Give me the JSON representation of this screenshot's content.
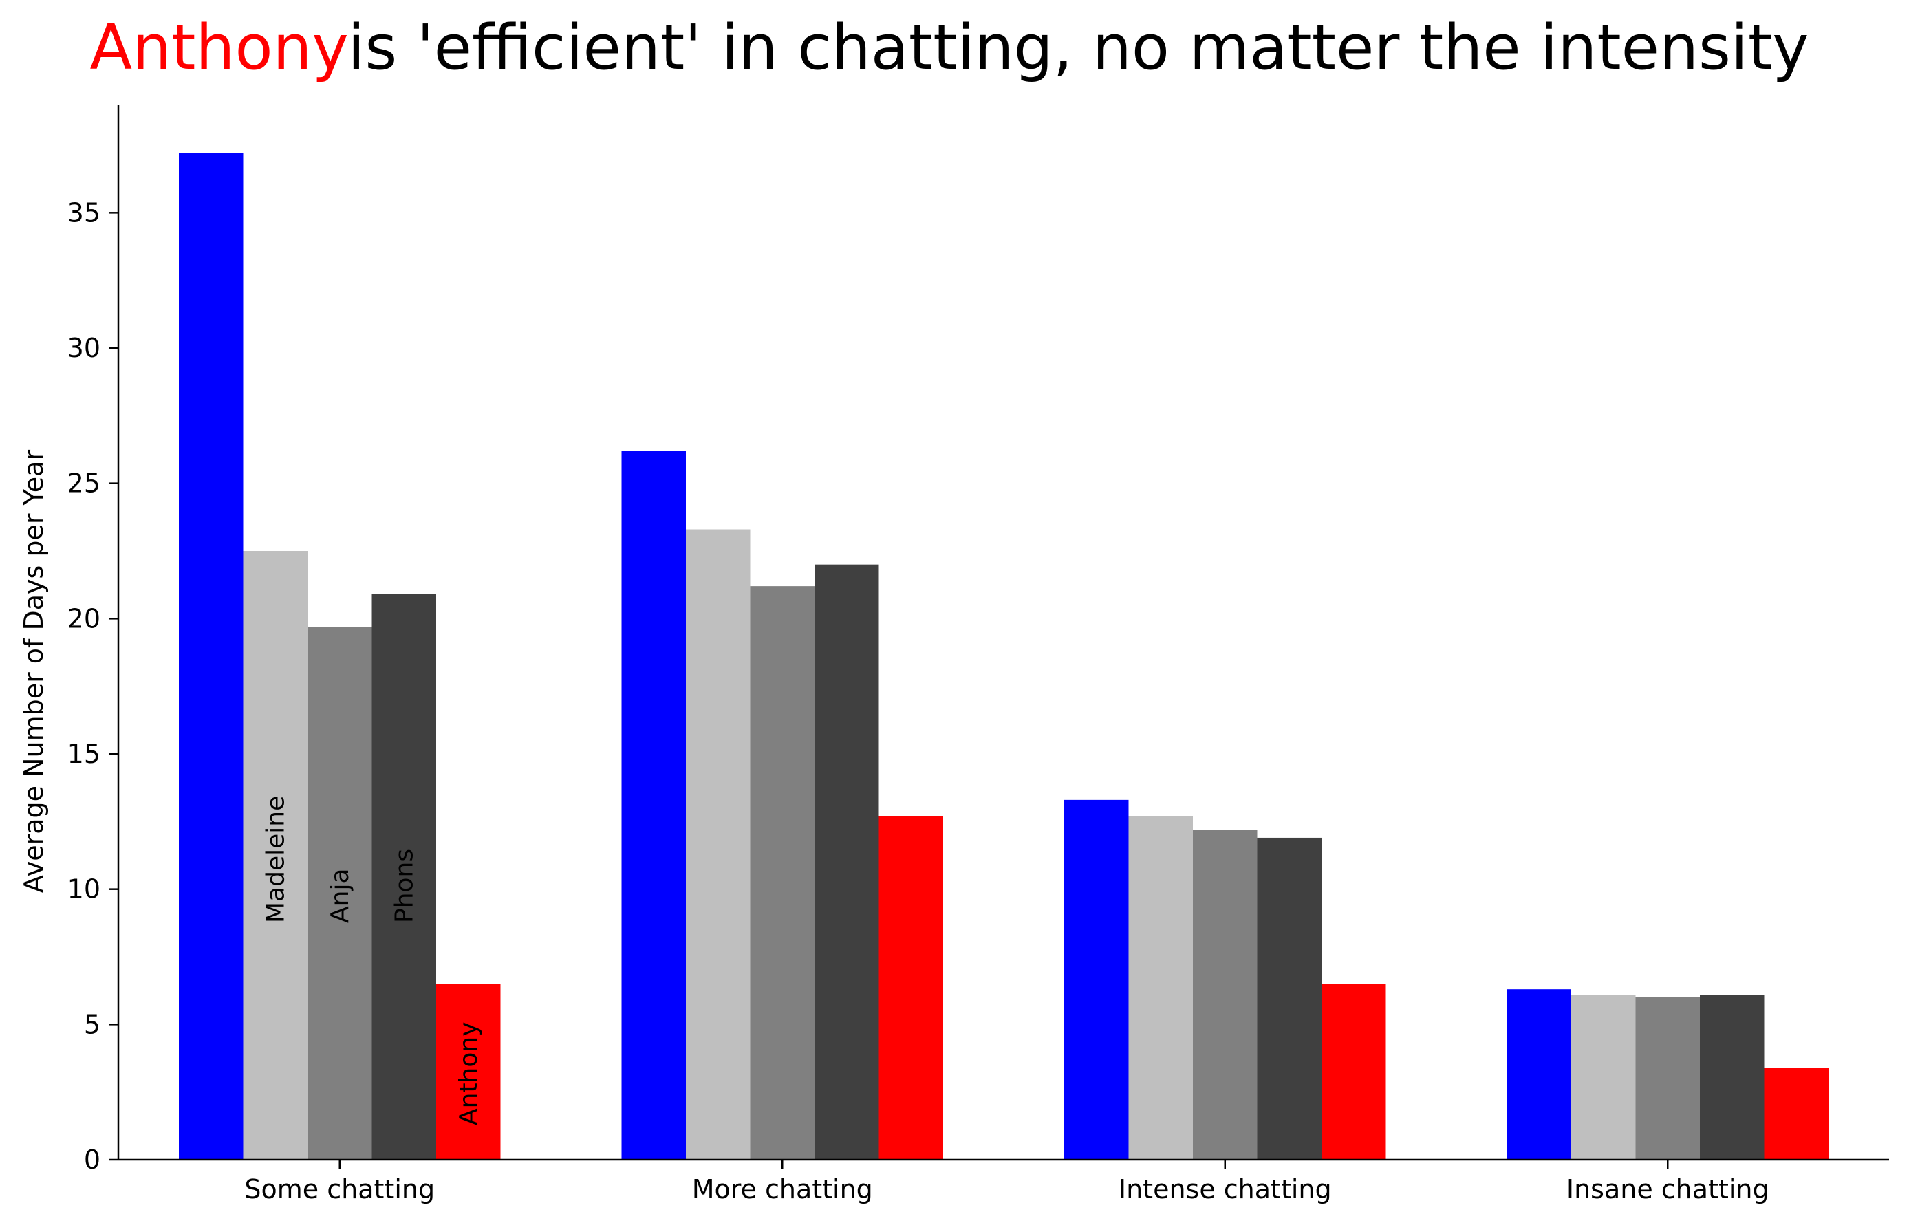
{
  "chart_data": {
    "type": "bar",
    "title": {
      "highlight": "Anthony",
      "rest": "is 'efficient' in chatting, no matter the intensity"
    },
    "xlabel": "",
    "ylabel": "Average Number of Days per Year",
    "ylim": [
      0,
      39
    ],
    "yticks": [
      0,
      5,
      10,
      15,
      20,
      25,
      30,
      35
    ],
    "categories": [
      "Some chatting",
      "More chatting",
      "Intense chatting",
      "Insane chatting"
    ],
    "series": [
      {
        "color": "#0000ff",
        "values": [
          37.2,
          26.2,
          13.3,
          6.3
        ]
      },
      {
        "name": "Madeleine",
        "color": "#bfbfbf",
        "values": [
          22.5,
          23.3,
          12.7,
          6.1
        ]
      },
      {
        "name": "Anja",
        "color": "#808080",
        "values": [
          19.7,
          21.2,
          12.2,
          6.0
        ]
      },
      {
        "name": "Phons",
        "color": "#404040",
        "values": [
          20.9,
          22.0,
          11.9,
          6.1
        ]
      },
      {
        "name": "Anthony",
        "color": "#ff0000",
        "values": [
          6.5,
          12.7,
          6.5,
          3.4
        ]
      }
    ],
    "grid": false,
    "legend": "none",
    "colors": {
      "highlight": "#ff0000",
      "text": "#000000"
    }
  }
}
